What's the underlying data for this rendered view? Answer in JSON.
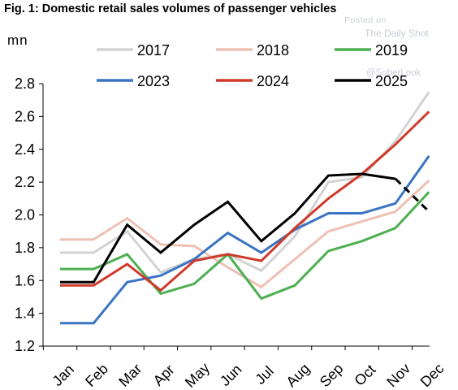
{
  "header": {
    "title": "Fig. 1: Domestic retail sales volumes of passenger vehicles",
    "unit": "mn"
  },
  "watermark": {
    "posted": "Posted on",
    "site": "The Daily Shot",
    "handle": "@SoberLook"
  },
  "chart_data": {
    "type": "line",
    "title": "Fig. 1: Domestic retail sales volumes of passenger vehicles",
    "ylabel": "mn",
    "xlabel": "",
    "categories": [
      "Jan",
      "Feb",
      "Mar",
      "Apr",
      "May",
      "Jun",
      "Jul",
      "Aug",
      "Sep",
      "Oct",
      "Nov",
      "Dec"
    ],
    "ylim": [
      1.2,
      2.8
    ],
    "yticks": [
      1.2,
      1.4,
      1.6,
      1.8,
      2.0,
      2.2,
      2.4,
      2.6,
      2.8
    ],
    "ytick_labels": [
      "1.2",
      "1.4",
      "1.6",
      "1.8",
      "2.0",
      "2.2",
      "2.4",
      "2.6",
      "2.8"
    ],
    "grid": false,
    "legend_position": "top",
    "series": [
      {
        "name": "2017",
        "color": "#d3d3d3",
        "values": [
          1.77,
          1.77,
          1.9,
          1.65,
          1.73,
          1.76,
          1.66,
          1.87,
          2.2,
          2.23,
          2.45,
          2.75
        ]
      },
      {
        "name": "2018",
        "color": "#efc0b4",
        "values": [
          1.85,
          1.85,
          1.98,
          1.82,
          1.81,
          1.68,
          1.56,
          1.73,
          1.9,
          1.96,
          2.02,
          2.21
        ]
      },
      {
        "name": "2019",
        "color": "#4caf50",
        "values": [
          1.67,
          1.67,
          1.76,
          1.52,
          1.58,
          1.76,
          1.49,
          1.57,
          1.78,
          1.84,
          1.92,
          2.14
        ]
      },
      {
        "name": "2023",
        "color": "#3a74c2",
        "values": [
          1.34,
          1.34,
          1.59,
          1.63,
          1.73,
          1.89,
          1.77,
          1.91,
          2.01,
          2.01,
          2.07,
          2.36
        ]
      },
      {
        "name": "2024",
        "color": "#cf3a2a",
        "values": [
          1.57,
          1.57,
          1.7,
          1.54,
          1.72,
          1.76,
          1.72,
          1.92,
          2.1,
          2.25,
          2.43,
          2.63
        ]
      },
      {
        "name": "2025",
        "color": "#000000",
        "values": [
          1.59,
          1.59,
          1.94,
          1.77,
          1.94,
          2.08,
          1.84,
          2.01,
          2.24,
          2.25,
          2.22,
          2.02
        ],
        "dashed_from_index": 10
      }
    ]
  }
}
